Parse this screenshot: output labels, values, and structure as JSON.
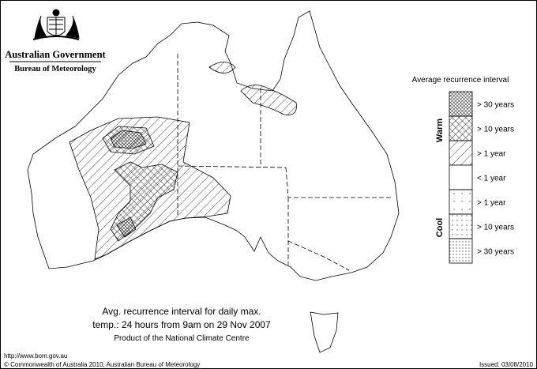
{
  "header": {
    "title": "Australian Government",
    "subtitle": "Bureau of Meteorology"
  },
  "legend": {
    "title": "Average recurrence interval",
    "warm_label": "Warm",
    "cool_label": "Cool",
    "items": [
      "> 30 years",
      "> 10 years",
      "> 1 year",
      "< 1 year",
      "> 1 year",
      "> 10 years",
      "> 30 years"
    ]
  },
  "caption": {
    "line1": "Avg. recurrence interval for daily max.",
    "line2": "temp.: 24 hours from 9am on 29 Nov 2007",
    "line3": "Product of the National Climate Centre"
  },
  "footer": {
    "url": "http://www.bom.gov.au",
    "copyright": "© Commonwealth of Australia 2010, Australian Bureau of Meteorology",
    "issued": "Issued: 03/08/2010"
  }
}
